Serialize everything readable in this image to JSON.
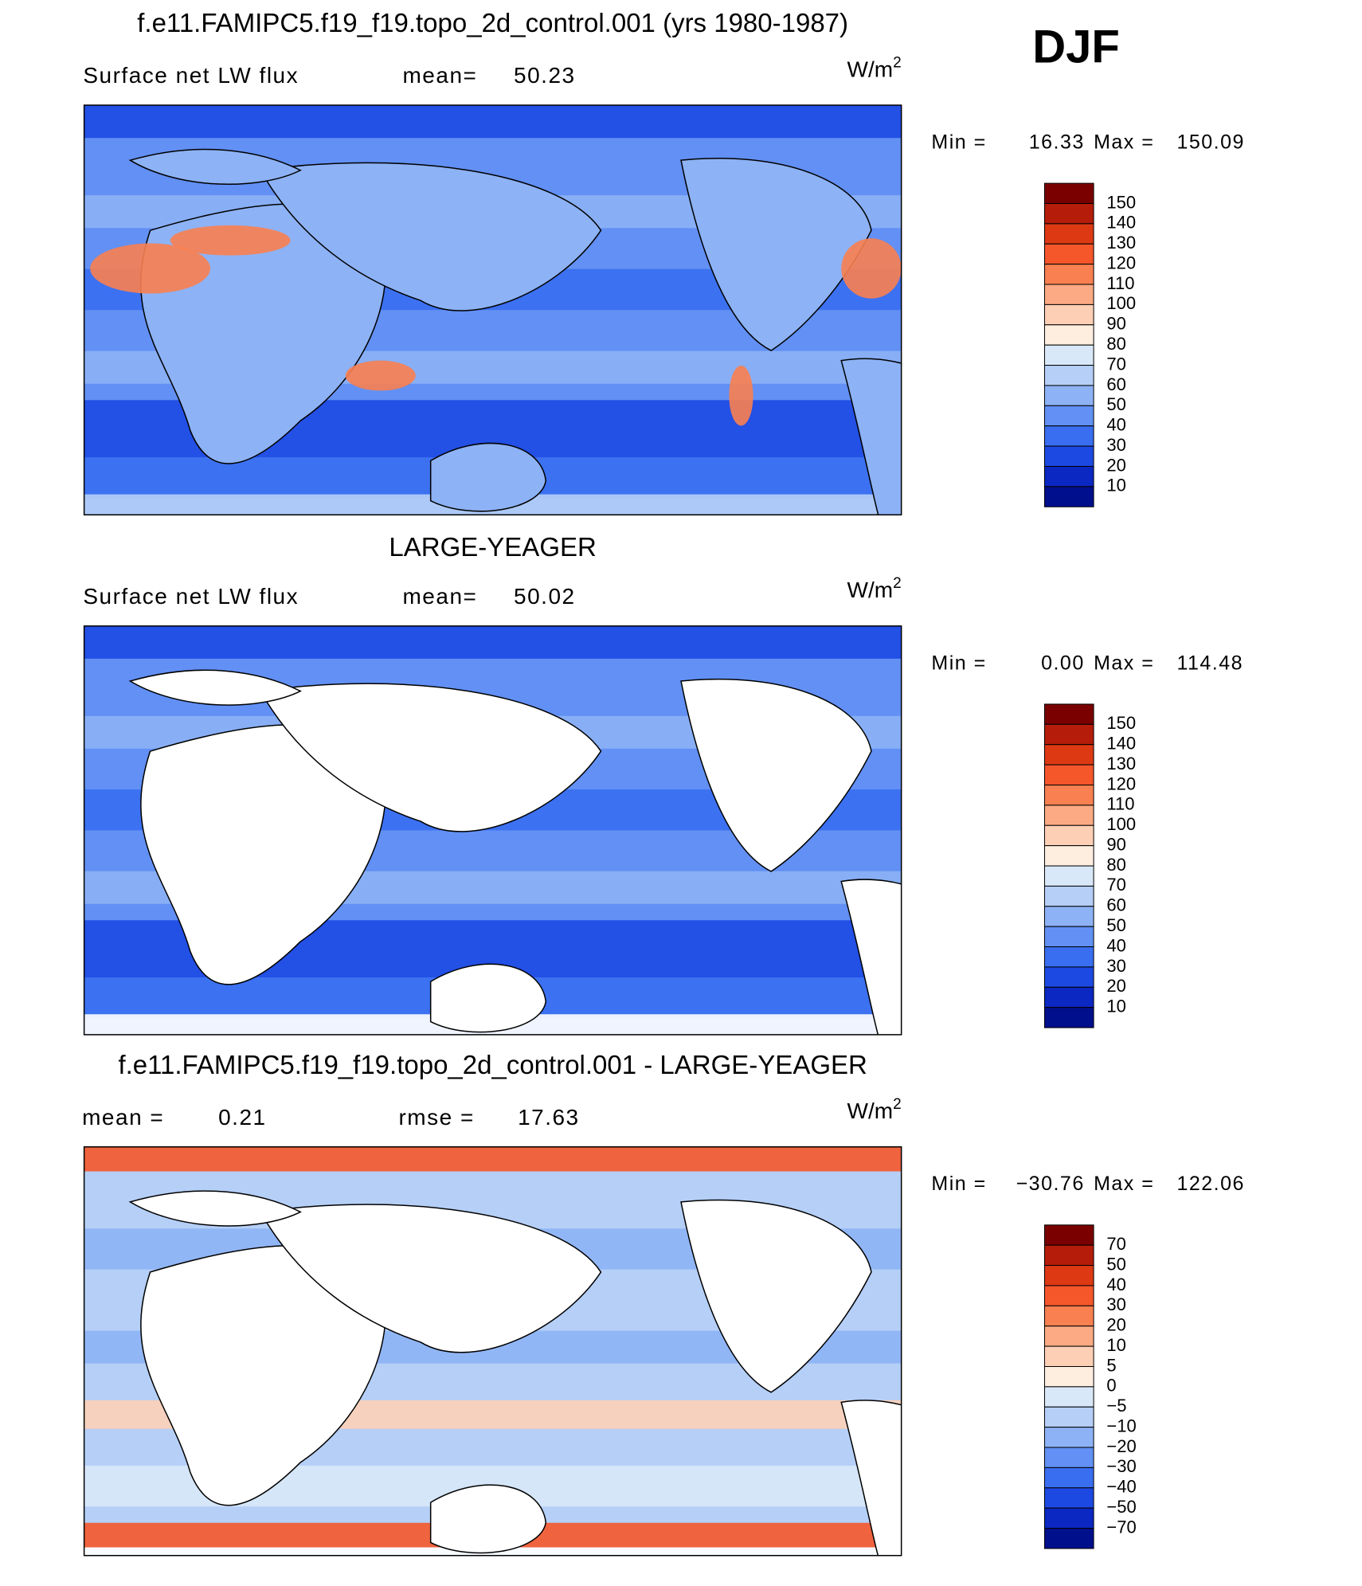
{
  "season": "DJF",
  "panels": [
    {
      "title": "f.e11.FAMIPC5.f19_f19.topo_2d_control.001 (yrs 1980-1987)",
      "stats": [
        {
          "label": "Surface net LW flux"
        },
        {
          "label": "mean=",
          "value": "50.23"
        }
      ],
      "units": {
        "base": "W/m",
        "exp": "2"
      },
      "range": {
        "min_label": "Min =",
        "min": "16.33",
        "max_label": "Max =",
        "max": "150.09"
      },
      "levels": [
        "150",
        "140",
        "130",
        "120",
        "110",
        "100",
        "90",
        "80",
        "70",
        "60",
        "50",
        "40",
        "30",
        "20",
        "10"
      ],
      "land": false
    },
    {
      "title": "LARGE-YEAGER",
      "stats": [
        {
          "label": "Surface net LW flux"
        },
        {
          "label": "mean=",
          "value": "50.02"
        }
      ],
      "units": {
        "base": "W/m",
        "exp": "2"
      },
      "range": {
        "min_label": "Min =",
        "min": "0.00",
        "max_label": "Max =",
        "max": "114.48"
      },
      "levels": [
        "150",
        "140",
        "130",
        "120",
        "110",
        "100",
        "90",
        "80",
        "70",
        "60",
        "50",
        "40",
        "30",
        "20",
        "10"
      ],
      "land": true
    },
    {
      "title": "f.e11.FAMIPC5.f19_f19.topo_2d_control.001 - LARGE-YEAGER",
      "stats": [
        {
          "label": "mean =",
          "value": "0.21"
        },
        {
          "label": "rmse =",
          "value": "17.63"
        }
      ],
      "units": {
        "base": "W/m",
        "exp": "2"
      },
      "range": {
        "min_label": "Min =",
        "min": "−30.76",
        "max_label": "Max =",
        "max": "122.06"
      },
      "levels": [
        "70",
        "50",
        "40",
        "30",
        "20",
        "10",
        "5",
        "0",
        "−5",
        "−10",
        "−20",
        "−30",
        "−40",
        "−50",
        "−70"
      ],
      "land": true
    }
  ],
  "colors": [
    "#7a0000",
    "#b51d0a",
    "#dd3a14",
    "#f5562a",
    "#f98050",
    "#fbaa84",
    "#fdd0b6",
    "#fdeedf",
    "#d9e8f8",
    "#b5cff7",
    "#8db2f5",
    "#6290f4",
    "#396ef1",
    "#1d49e3",
    "#0b28c2",
    "#000f8c"
  ]
}
